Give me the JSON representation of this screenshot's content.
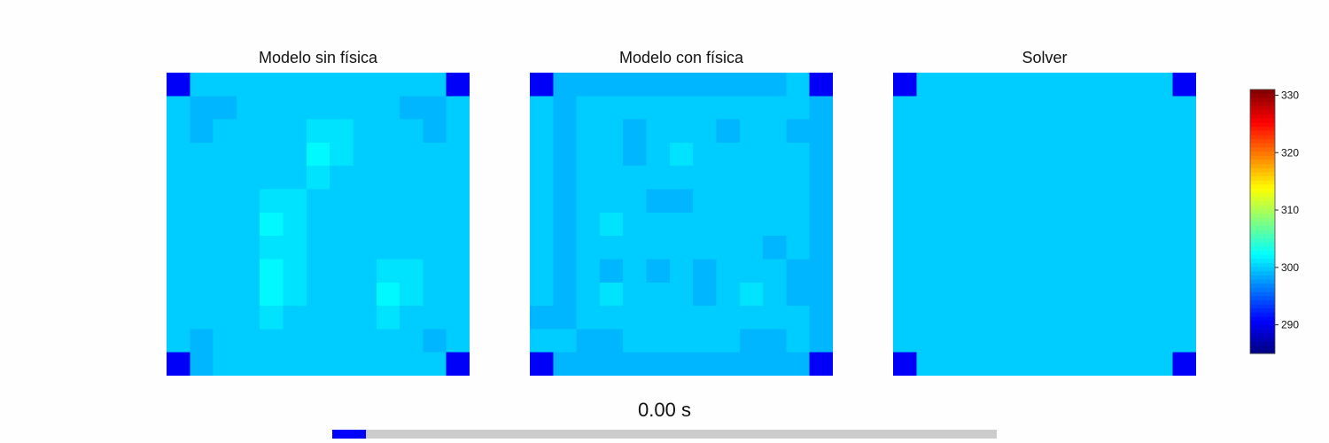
{
  "chart_data": {
    "type": "heatmap",
    "colormap": "jet",
    "vmin": 285,
    "vmax": 331,
    "grid_size": 13,
    "corner_value": 290.5,
    "panels": [
      {
        "title": "Modelo sin física",
        "values": [
          [
            290.5,
            300,
            300,
            300,
            300,
            300,
            300,
            300,
            300,
            300,
            300,
            300,
            290.5
          ],
          [
            300,
            299,
            299,
            300,
            300,
            300,
            300,
            300,
            300,
            300,
            299,
            299,
            300
          ],
          [
            300,
            299,
            300,
            300,
            300,
            300,
            301,
            301,
            300,
            300,
            300,
            299,
            300
          ],
          [
            300,
            300,
            300,
            300,
            300,
            300,
            302,
            301,
            300,
            300,
            300,
            300,
            300
          ],
          [
            300,
            300,
            300,
            300,
            300,
            300,
            301,
            300,
            300,
            300,
            300,
            300,
            300
          ],
          [
            300,
            300,
            300,
            300,
            301,
            301,
            300,
            300,
            300,
            300,
            300,
            300,
            300
          ],
          [
            300,
            300,
            300,
            300,
            302,
            301,
            300,
            300,
            300,
            300,
            300,
            300,
            300
          ],
          [
            300,
            300,
            300,
            300,
            301,
            301,
            300,
            300,
            300,
            300,
            300,
            300,
            300
          ],
          [
            300,
            300,
            300,
            300,
            302,
            301,
            300,
            300,
            300,
            301,
            301,
            300,
            300
          ],
          [
            300,
            300,
            300,
            300,
            302,
            301,
            300,
            300,
            300,
            302,
            301,
            300,
            300
          ],
          [
            300,
            300,
            300,
            300,
            301,
            300,
            300,
            300,
            300,
            301,
            300,
            300,
            300
          ],
          [
            300,
            299,
            300,
            300,
            300,
            300,
            300,
            300,
            300,
            300,
            300,
            299,
            300
          ],
          [
            290.5,
            299,
            300,
            300,
            300,
            300,
            300,
            300,
            300,
            300,
            300,
            300,
            290.5
          ]
        ]
      },
      {
        "title": "Modelo con física",
        "values": [
          [
            290.5,
            299,
            299,
            299,
            299,
            299,
            299,
            299,
            299,
            299,
            299,
            300,
            290.5
          ],
          [
            300,
            299,
            300,
            300,
            300,
            300,
            300,
            300,
            300,
            300,
            300,
            300,
            299
          ],
          [
            300,
            299,
            300,
            300,
            299,
            300,
            300,
            300,
            299,
            300,
            300,
            299,
            299
          ],
          [
            300,
            299,
            300,
            300,
            299,
            300,
            301,
            300,
            300,
            300,
            300,
            300,
            299
          ],
          [
            300,
            299,
            300,
            300,
            300,
            300,
            300,
            300,
            300,
            300,
            300,
            300,
            299
          ],
          [
            300,
            299,
            300,
            300,
            300,
            299,
            299,
            300,
            300,
            300,
            300,
            300,
            299
          ],
          [
            300,
            299,
            300,
            301,
            300,
            300,
            300,
            300,
            300,
            300,
            300,
            300,
            299
          ],
          [
            300,
            299,
            300,
            300,
            300,
            300,
            300,
            300,
            300,
            300,
            299,
            300,
            299
          ],
          [
            300,
            299,
            300,
            299,
            300,
            299,
            300,
            299,
            300,
            300,
            300,
            299,
            299
          ],
          [
            300,
            299,
            300,
            301,
            300,
            300,
            300,
            299,
            300,
            301,
            300,
            299,
            299
          ],
          [
            299,
            299,
            300,
            300,
            300,
            300,
            300,
            300,
            300,
            300,
            300,
            300,
            299
          ],
          [
            300,
            300,
            299,
            299,
            300,
            300,
            300,
            300,
            300,
            299,
            299,
            300,
            299
          ],
          [
            290.5,
            299,
            299,
            299,
            299,
            299,
            299,
            299,
            299,
            299,
            299,
            299,
            290.5
          ]
        ]
      },
      {
        "title": "Solver",
        "values": [
          [
            290.5,
            300,
            300,
            300,
            300,
            300,
            300,
            300,
            300,
            300,
            300,
            300,
            290.5
          ],
          [
            300,
            300,
            300,
            300,
            300,
            300,
            300,
            300,
            300,
            300,
            300,
            300,
            300
          ],
          [
            300,
            300,
            300,
            300,
            300,
            300,
            300,
            300,
            300,
            300,
            300,
            300,
            300
          ],
          [
            300,
            300,
            300,
            300,
            300,
            300,
            300,
            300,
            300,
            300,
            300,
            300,
            300
          ],
          [
            300,
            300,
            300,
            300,
            300,
            300,
            300,
            300,
            300,
            300,
            300,
            300,
            300
          ],
          [
            300,
            300,
            300,
            300,
            300,
            300,
            300,
            300,
            300,
            300,
            300,
            300,
            300
          ],
          [
            300,
            300,
            300,
            300,
            300,
            300,
            300,
            300,
            300,
            300,
            300,
            300,
            300
          ],
          [
            300,
            300,
            300,
            300,
            300,
            300,
            300,
            300,
            300,
            300,
            300,
            300,
            300
          ],
          [
            300,
            300,
            300,
            300,
            300,
            300,
            300,
            300,
            300,
            300,
            300,
            300,
            300
          ],
          [
            300,
            300,
            300,
            300,
            300,
            300,
            300,
            300,
            300,
            300,
            300,
            300,
            300
          ],
          [
            300,
            300,
            300,
            300,
            300,
            300,
            300,
            300,
            300,
            300,
            300,
            300,
            300
          ],
          [
            300,
            300,
            300,
            300,
            300,
            300,
            300,
            300,
            300,
            300,
            300,
            300,
            300
          ],
          [
            290.5,
            300,
            300,
            300,
            300,
            300,
            300,
            300,
            300,
            300,
            300,
            300,
            290.5
          ]
        ]
      }
    ],
    "colorbar": {
      "ticks": [
        290,
        300,
        310,
        320,
        330
      ],
      "tick_labels": [
        "290",
        "300",
        "310",
        "320",
        "330"
      ]
    }
  },
  "time_label": "0.00 s",
  "progress": 0.05,
  "colors": {
    "progress_fill": "#0000ff",
    "progress_track": "#cccccc"
  }
}
